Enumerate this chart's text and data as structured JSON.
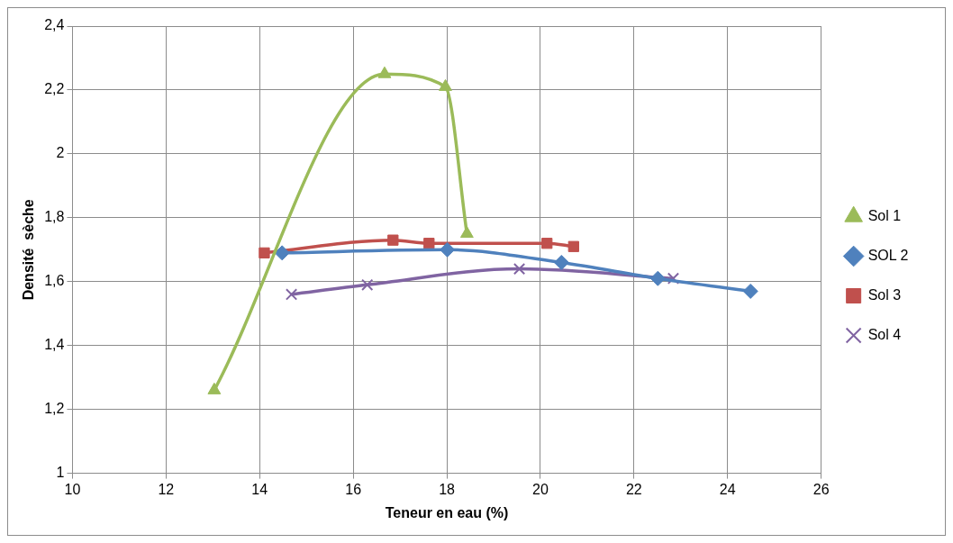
{
  "chart_data": {
    "type": "line",
    "xlabel": "Teneur en eau (%)",
    "ylabel": "Densité  sèche",
    "xlim": [
      10,
      26
    ],
    "xticks": [
      10,
      12,
      14,
      16,
      18,
      20,
      22,
      24,
      26
    ],
    "ylim": [
      1,
      2.4
    ],
    "yticks": [
      1,
      {
        "value": 1.2,
        "label": "1,2"
      },
      {
        "value": 1.4,
        "label": "1,4"
      },
      {
        "value": 1.6,
        "label": "1,6"
      },
      {
        "value": 1.8,
        "label": "1,8"
      },
      2,
      {
        "value": 2.2,
        "label": "2,2"
      },
      {
        "value": 2.4,
        "label": "2,4"
      }
    ],
    "grid": true,
    "legend": "right",
    "line_style": "solid",
    "series": [
      {
        "name": "Sol 1",
        "color": "#9bbb59",
        "marker": "triangle",
        "x": [
          13.03,
          16.67,
          17.97,
          18.43
        ],
        "values": [
          1.26,
          2.25,
          2.21,
          1.75
        ]
      },
      {
        "name": "SOL 2",
        "color": "#4f81bd",
        "marker": "diamond",
        "x": [
          14.48,
          18.01,
          20.45,
          22.51,
          24.49
        ],
        "values": [
          1.69,
          1.7,
          1.66,
          1.61,
          1.57
        ]
      },
      {
        "name": "Sol 3",
        "color": "#c0504d",
        "marker": "square",
        "x": [
          14.1,
          16.85,
          17.62,
          20.14,
          20.71
        ],
        "values": [
          1.69,
          1.73,
          1.72,
          1.72,
          1.71
        ]
      },
      {
        "name": "Sol 4",
        "color": "#8064a2",
        "marker": "cross",
        "x": [
          14.68,
          16.3,
          19.55,
          22.84
        ],
        "values": [
          1.56,
          1.59,
          1.64,
          1.61
        ]
      }
    ]
  }
}
